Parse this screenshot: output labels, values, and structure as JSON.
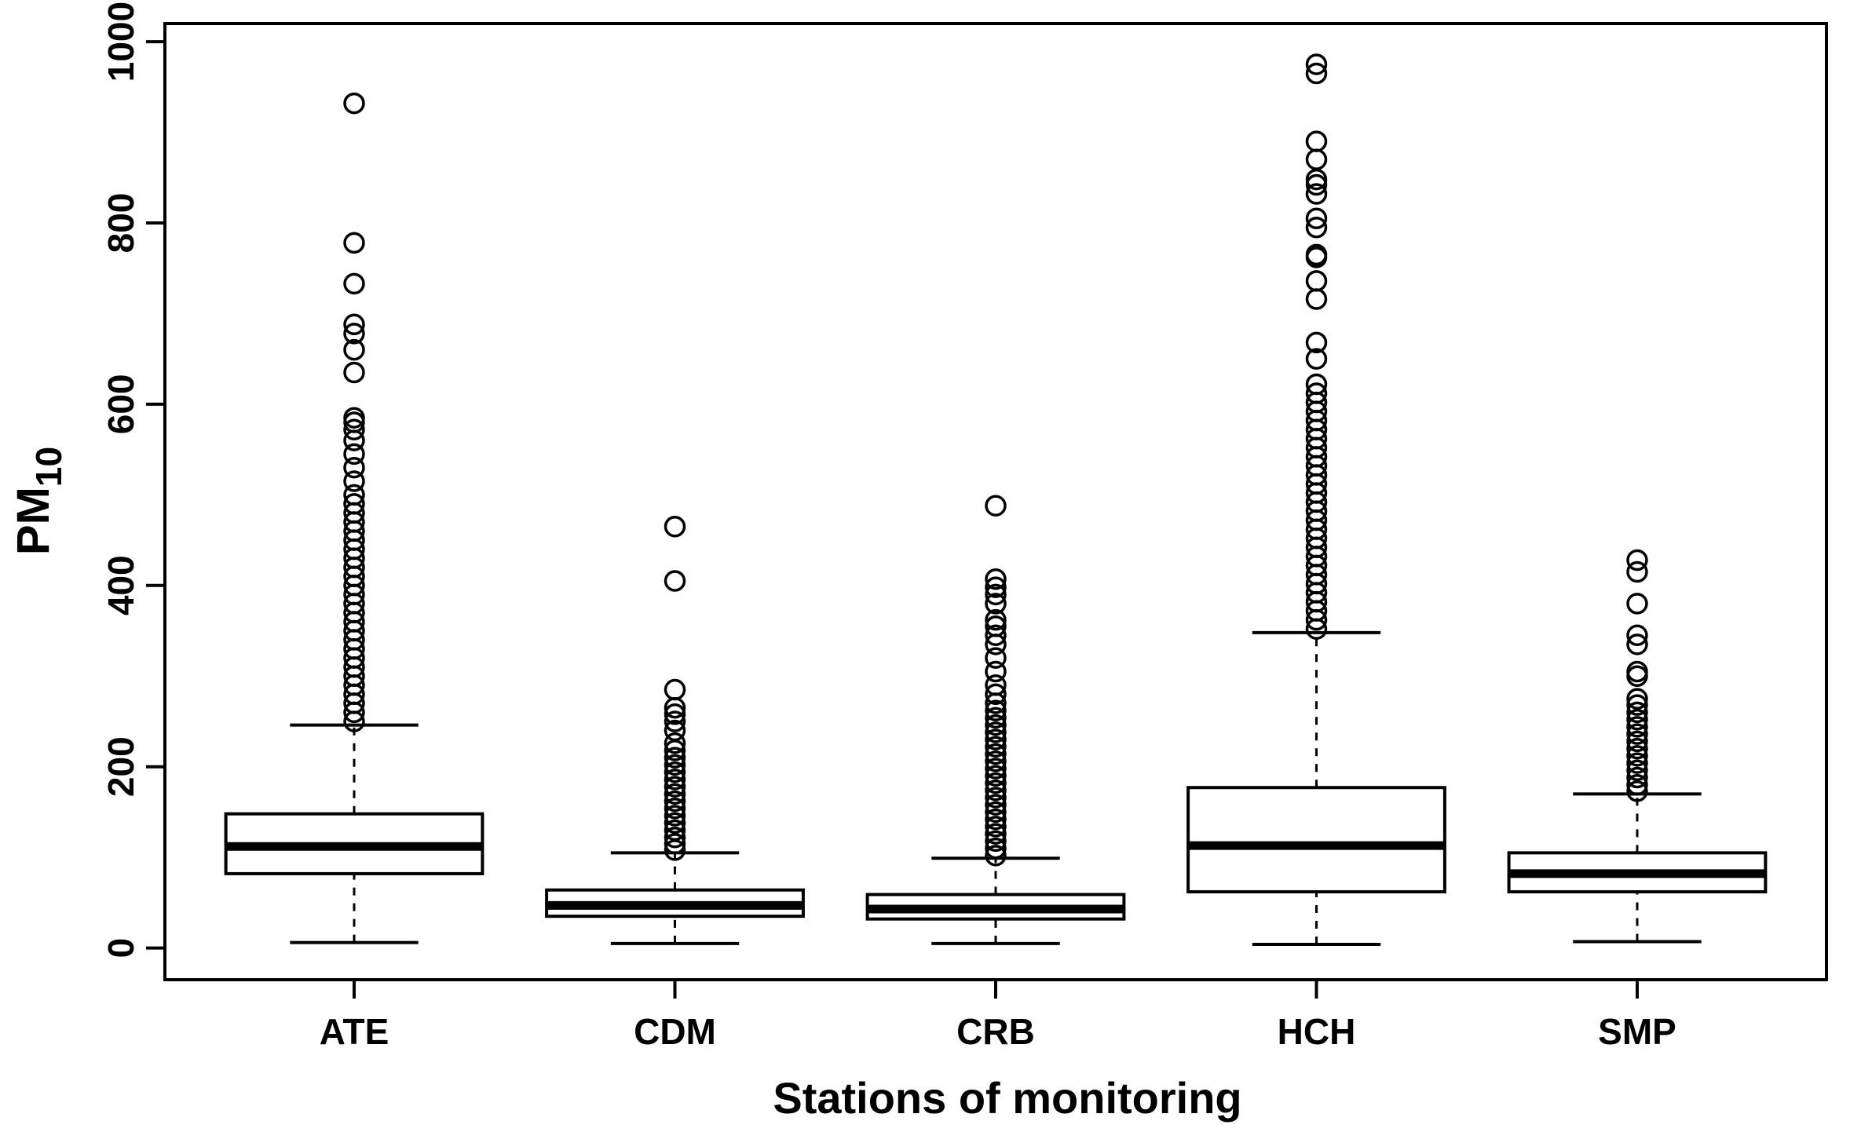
{
  "chart_data": {
    "type": "boxplot",
    "title": "",
    "xlabel": "Stations of monitoring",
    "ylabel": {
      "main": "PM",
      "subscript": "10"
    },
    "ylim": [
      -35,
      1020
    ],
    "yticks": [
      0,
      200,
      400,
      600,
      800,
      1000
    ],
    "grid": false,
    "categories": [
      "ATE",
      "CDM",
      "CRB",
      "HCH",
      "SMP"
    ],
    "series": [
      {
        "name": "ATE",
        "whisker_low": 6,
        "q1": 82,
        "median": 112,
        "q3": 148,
        "whisker_high": 246,
        "outliers": [
          250,
          260,
          270,
          280,
          290,
          300,
          310,
          320,
          330,
          340,
          350,
          360,
          370,
          380,
          390,
          400,
          410,
          420,
          430,
          440,
          450,
          460,
          470,
          480,
          490,
          500,
          515,
          530,
          545,
          560,
          572,
          580,
          585,
          635,
          660,
          678,
          688,
          733,
          778,
          932
        ]
      },
      {
        "name": "CDM",
        "whisker_low": 5,
        "q1": 35,
        "median": 47,
        "q3": 64,
        "whisker_high": 105,
        "outliers": [
          108,
          115,
          122,
          130,
          138,
          146,
          154,
          162,
          170,
          178,
          186,
          194,
          202,
          210,
          218,
          226,
          240,
          250,
          258,
          265,
          285,
          405,
          465
        ]
      },
      {
        "name": "CRB",
        "whisker_low": 5,
        "q1": 32,
        "median": 43,
        "q3": 59,
        "whisker_high": 99,
        "outliers": [
          102,
          110,
          118,
          126,
          134,
          142,
          150,
          158,
          166,
          174,
          182,
          190,
          198,
          206,
          214,
          222,
          230,
          238,
          246,
          254,
          262,
          270,
          280,
          290,
          305,
          320,
          335,
          345,
          355,
          362,
          380,
          390,
          398,
          407,
          488
        ]
      },
      {
        "name": "HCH",
        "whisker_low": 4,
        "q1": 62,
        "median": 113,
        "q3": 177,
        "whisker_high": 348,
        "outliers": [
          352,
          362,
          372,
          382,
          392,
          402,
          412,
          422,
          432,
          442,
          452,
          462,
          472,
          482,
          492,
          502,
          512,
          522,
          532,
          542,
          552,
          562,
          572,
          582,
          592,
          602,
          612,
          622,
          650,
          668,
          716,
          736,
          762,
          765,
          795,
          805,
          832,
          842,
          848,
          870,
          890,
          965,
          975
        ]
      },
      {
        "name": "SMP",
        "whisker_low": 7,
        "q1": 62,
        "median": 82,
        "q3": 105,
        "whisker_high": 170,
        "outliers": [
          173,
          180,
          188,
          196,
          204,
          212,
          220,
          228,
          236,
          244,
          252,
          260,
          268,
          275,
          300,
          305,
          335,
          345,
          380,
          415,
          428
        ]
      }
    ]
  }
}
